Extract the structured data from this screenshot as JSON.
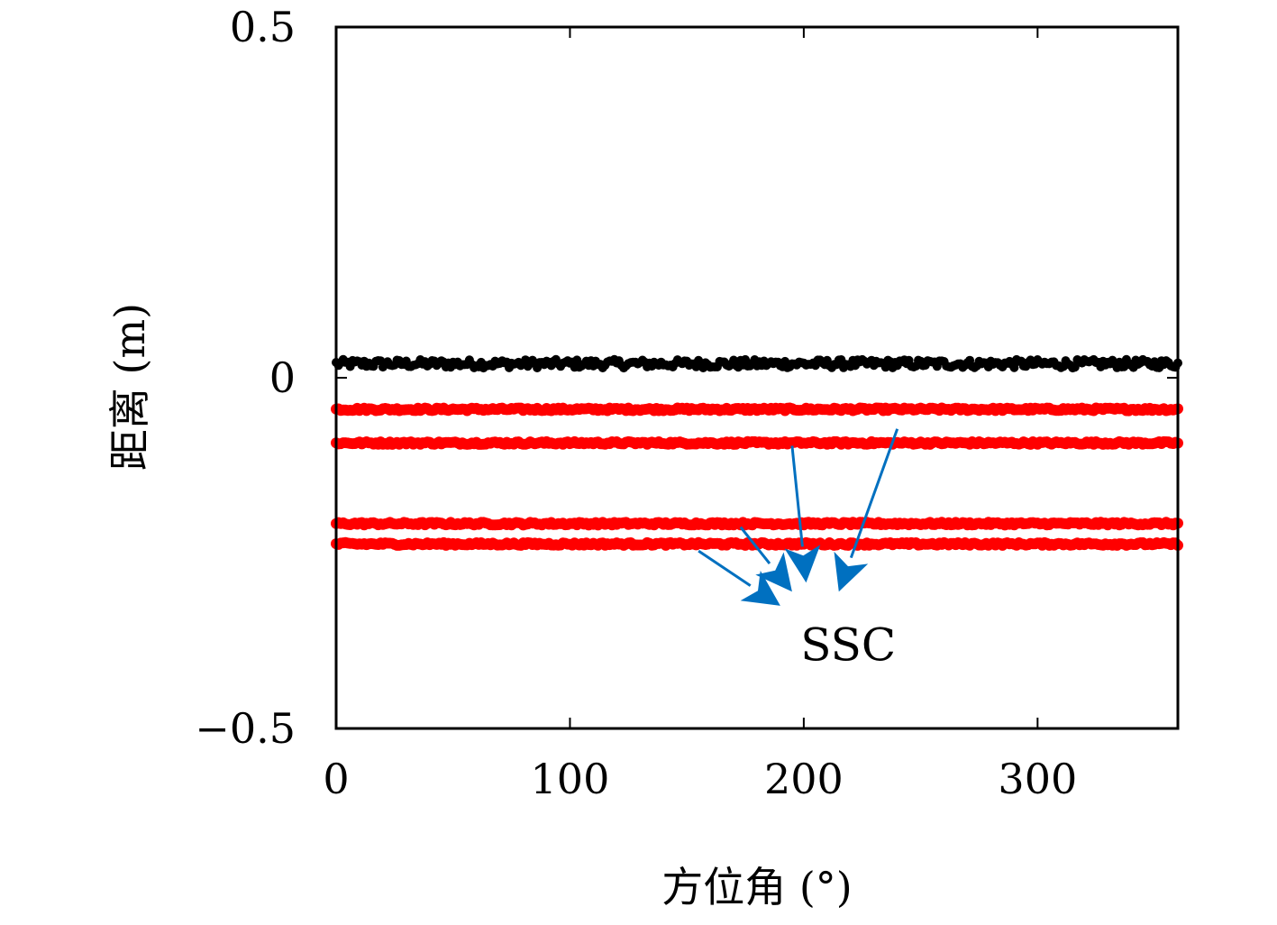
{
  "chart_data": {
    "type": "scatter",
    "xlabel": "方位角 (°)",
    "ylabel": "距离 (m)",
    "xlim": [
      0,
      360
    ],
    "ylim": [
      -0.5,
      0.5
    ],
    "xticks": [
      0,
      100,
      200,
      300
    ],
    "xtick_labels": [
      "0",
      "100",
      "200",
      "300"
    ],
    "yticks": [
      -0.5,
      0,
      0.5
    ],
    "ytick_labels": [
      "−0.5",
      "0",
      "0.5"
    ],
    "grid": false,
    "series": [
      {
        "color": "#000000",
        "x_range": [
          0,
          360
        ],
        "y": 0.02
      },
      {
        "color": "#ff0000",
        "x_range": [
          0,
          360
        ],
        "y": -0.045
      },
      {
        "color": "#ff0000",
        "x_range": [
          0,
          360
        ],
        "y": -0.093
      },
      {
        "color": "#ff0000",
        "x_range": [
          0,
          360
        ],
        "y": -0.208
      },
      {
        "color": "#ff0000",
        "x_range": [
          0,
          360
        ],
        "y": -0.237
      }
    ],
    "annotations": [
      {
        "text": "SSC",
        "color": "#0070c0",
        "arrows": [
          {
            "from": [
              155,
              -0.247
            ],
            "to": [
              190,
              -0.325
            ]
          },
          {
            "from": [
              173,
              -0.213
            ],
            "to": [
              195,
              -0.305
            ]
          },
          {
            "from": [
              195,
              -0.097
            ],
            "to": [
              201,
              -0.292
            ]
          },
          {
            "from": [
              240,
              -0.073
            ],
            "to": [
              215,
              -0.305
            ]
          }
        ],
        "text_pos": [
          219,
          -0.38
        ]
      }
    ]
  }
}
